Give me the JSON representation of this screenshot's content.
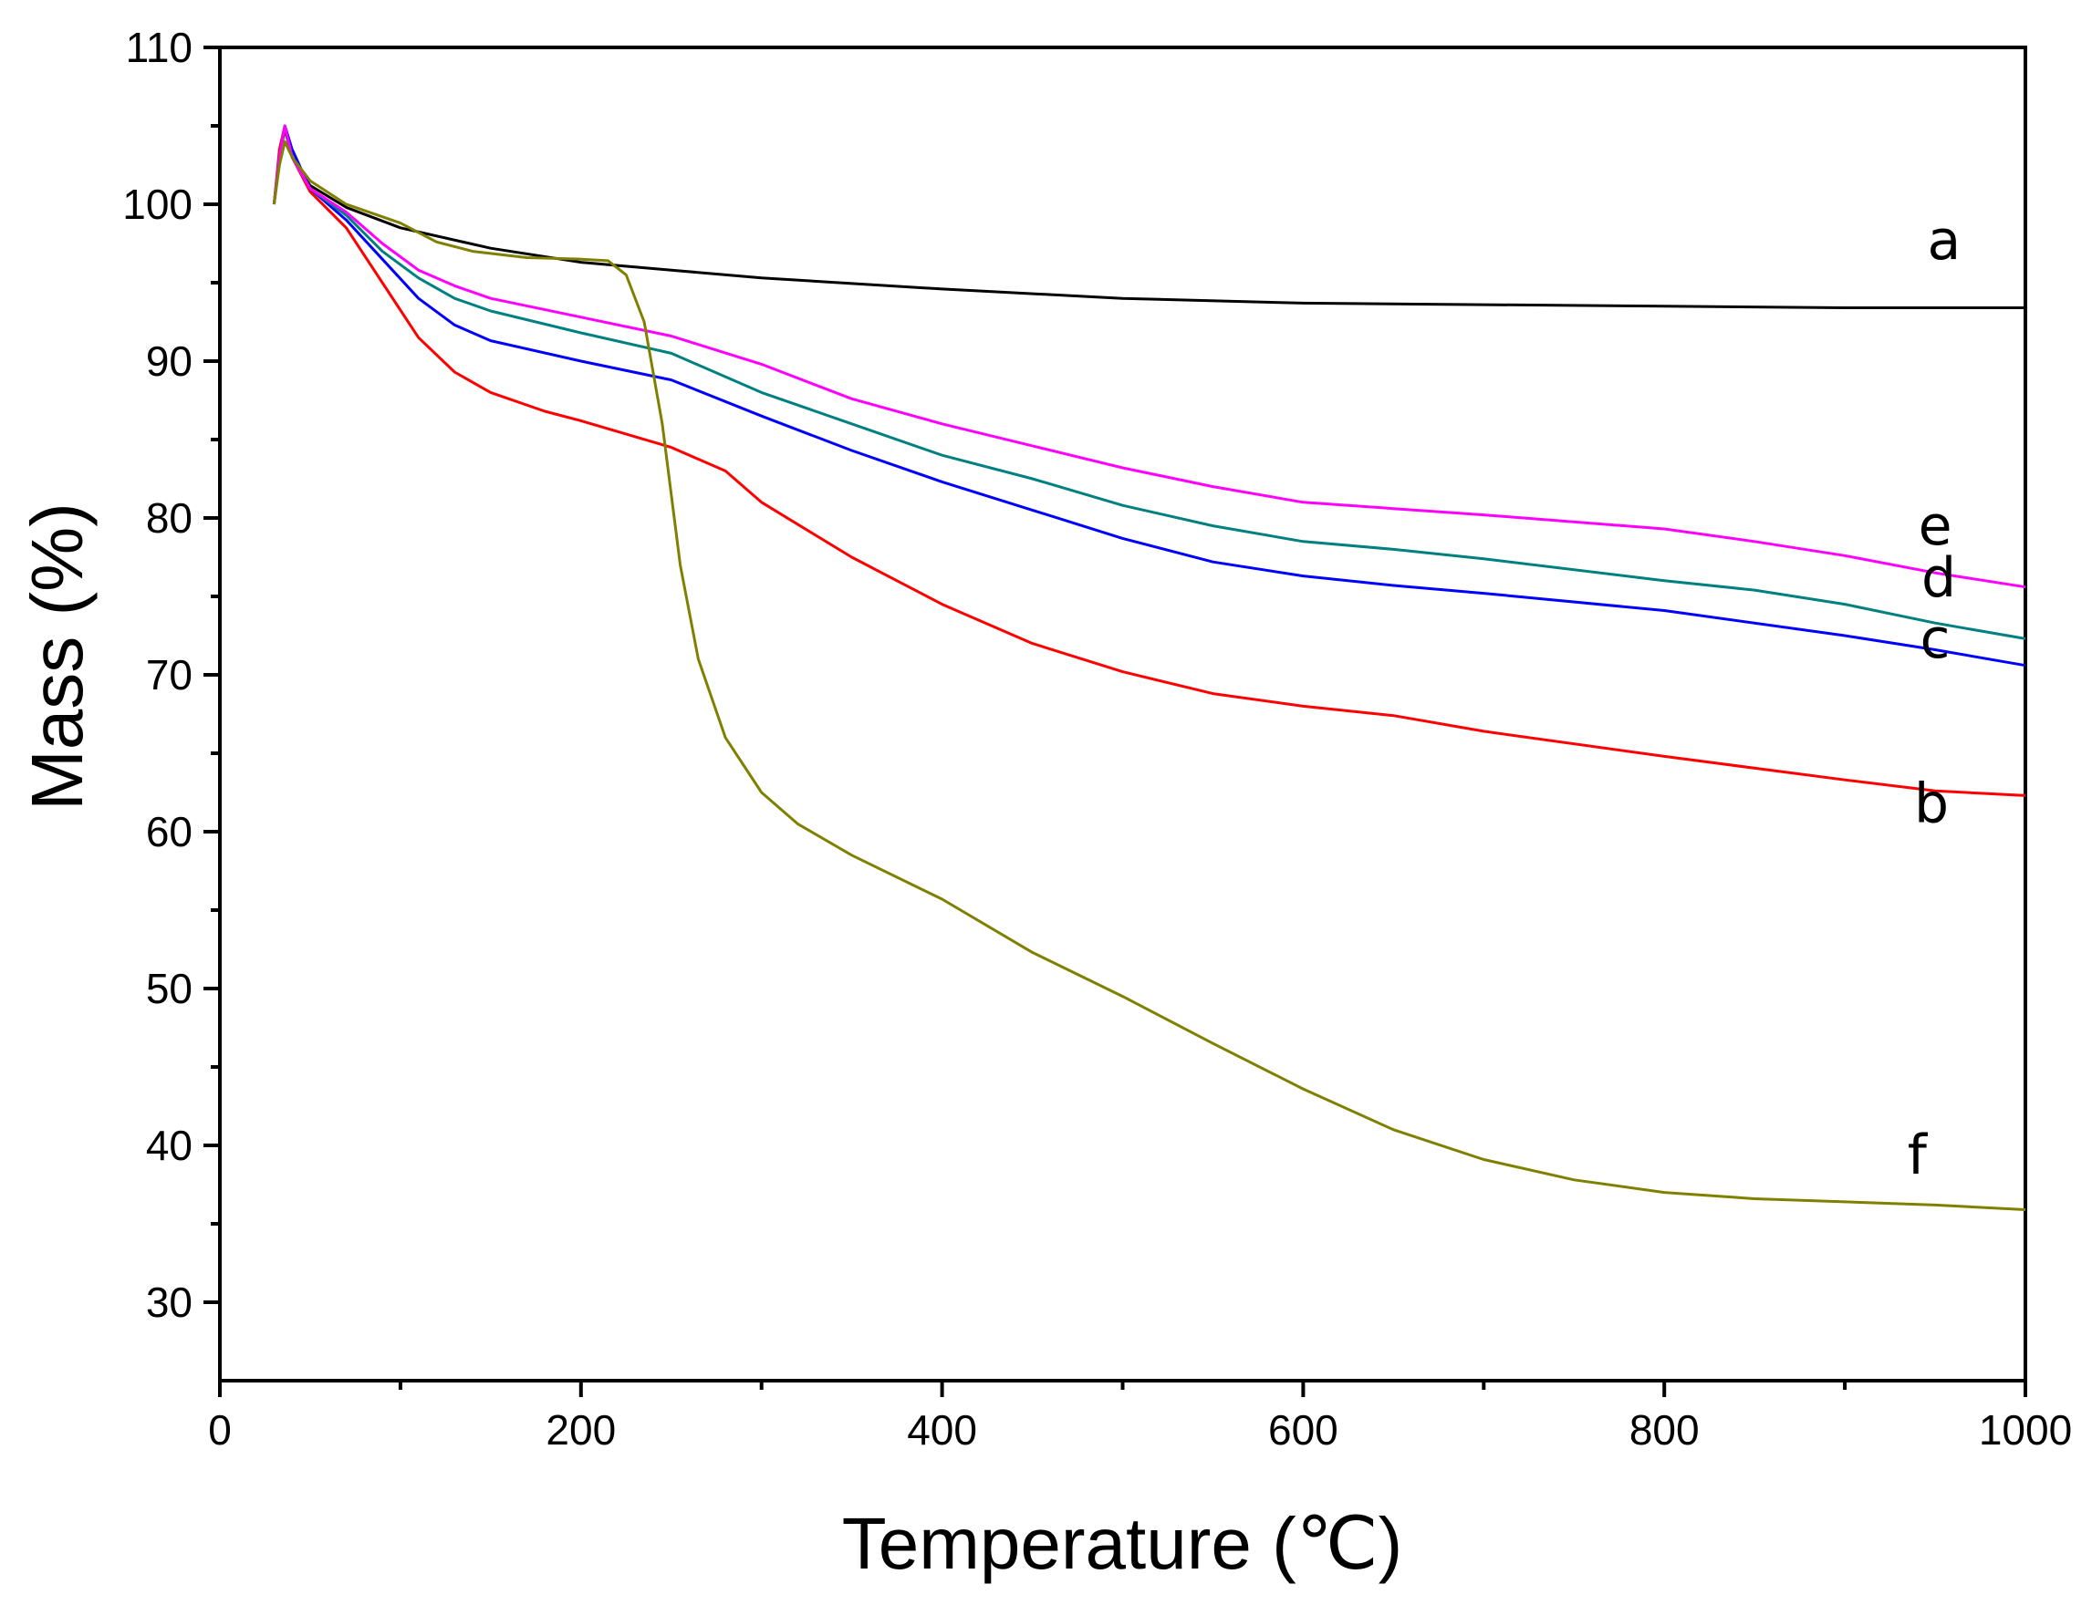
{
  "chart_data": {
    "type": "line",
    "title": "",
    "xlabel": "Temperature (℃)",
    "ylabel": "Mass (%)",
    "xlim": [
      0,
      1000
    ],
    "ylim": [
      25,
      110
    ],
    "xticks": [
      0,
      200,
      400,
      600,
      800,
      1000
    ],
    "yticks": [
      30,
      40,
      50,
      60,
      70,
      80,
      90,
      100,
      110
    ],
    "grid": false,
    "legend": "none; curves labeled inline at right end",
    "series": [
      {
        "name": "a",
        "color": "#000000",
        "points": [
          [
            30,
            100
          ],
          [
            33,
            103
          ],
          [
            36,
            104.8
          ],
          [
            40,
            103
          ],
          [
            50,
            101.2
          ],
          [
            70,
            99.8
          ],
          [
            100,
            98.5
          ],
          [
            150,
            97.2
          ],
          [
            200,
            96.3
          ],
          [
            250,
            95.8
          ],
          [
            300,
            95.3
          ],
          [
            400,
            94.6
          ],
          [
            500,
            94
          ],
          [
            600,
            93.7
          ],
          [
            700,
            93.6
          ],
          [
            800,
            93.5
          ],
          [
            900,
            93.4
          ],
          [
            1000,
            93.4
          ]
        ]
      },
      {
        "name": "b",
        "color": "#ff0000",
        "points": [
          [
            30,
            100
          ],
          [
            33,
            103.5
          ],
          [
            36,
            105
          ],
          [
            40,
            103
          ],
          [
            50,
            100.8
          ],
          [
            70,
            98.5
          ],
          [
            90,
            95
          ],
          [
            110,
            91.5
          ],
          [
            130,
            89.3
          ],
          [
            150,
            88
          ],
          [
            180,
            86.8
          ],
          [
            200,
            86.2
          ],
          [
            250,
            84.5
          ],
          [
            280,
            83
          ],
          [
            300,
            81
          ],
          [
            350,
            77.5
          ],
          [
            400,
            74.5
          ],
          [
            450,
            72
          ],
          [
            500,
            70.2
          ],
          [
            550,
            68.8
          ],
          [
            600,
            68
          ],
          [
            650,
            67.4
          ],
          [
            700,
            66.4
          ],
          [
            800,
            64.8
          ],
          [
            900,
            63.3
          ],
          [
            950,
            62.6
          ],
          [
            1000,
            62.3
          ]
        ]
      },
      {
        "name": "c",
        "color": "#0000ff",
        "points": [
          [
            30,
            100
          ],
          [
            33,
            103
          ],
          [
            36,
            105
          ],
          [
            40,
            103.5
          ],
          [
            50,
            101
          ],
          [
            70,
            99
          ],
          [
            90,
            96.5
          ],
          [
            110,
            94
          ],
          [
            130,
            92.3
          ],
          [
            150,
            91.3
          ],
          [
            200,
            90
          ],
          [
            250,
            88.8
          ],
          [
            300,
            86.5
          ],
          [
            350,
            84.3
          ],
          [
            400,
            82.3
          ],
          [
            450,
            80.5
          ],
          [
            500,
            78.7
          ],
          [
            550,
            77.2
          ],
          [
            600,
            76.3
          ],
          [
            650,
            75.7
          ],
          [
            700,
            75.2
          ],
          [
            800,
            74.1
          ],
          [
            900,
            72.5
          ],
          [
            950,
            71.6
          ],
          [
            1000,
            70.6
          ]
        ]
      },
      {
        "name": "d",
        "color": "#008080",
        "points": [
          [
            30,
            100
          ],
          [
            33,
            103
          ],
          [
            36,
            105
          ],
          [
            40,
            103
          ],
          [
            50,
            101
          ],
          [
            70,
            99.3
          ],
          [
            90,
            97
          ],
          [
            110,
            95.3
          ],
          [
            130,
            94
          ],
          [
            150,
            93.2
          ],
          [
            200,
            91.8
          ],
          [
            250,
            90.5
          ],
          [
            300,
            88
          ],
          [
            350,
            86
          ],
          [
            400,
            84
          ],
          [
            450,
            82.5
          ],
          [
            500,
            80.8
          ],
          [
            550,
            79.5
          ],
          [
            600,
            78.5
          ],
          [
            650,
            78
          ],
          [
            700,
            77.4
          ],
          [
            800,
            76
          ],
          [
            850,
            75.4
          ],
          [
            900,
            74.5
          ],
          [
            950,
            73.3
          ],
          [
            1000,
            72.3
          ]
        ]
      },
      {
        "name": "e",
        "color": "#ff00ff",
        "points": [
          [
            30,
            100
          ],
          [
            33,
            103
          ],
          [
            36,
            105
          ],
          [
            40,
            103
          ],
          [
            50,
            101
          ],
          [
            70,
            99.5
          ],
          [
            90,
            97.5
          ],
          [
            110,
            95.8
          ],
          [
            130,
            94.8
          ],
          [
            150,
            94
          ],
          [
            200,
            92.8
          ],
          [
            250,
            91.6
          ],
          [
            300,
            89.8
          ],
          [
            350,
            87.6
          ],
          [
            400,
            86
          ],
          [
            450,
            84.6
          ],
          [
            500,
            83.2
          ],
          [
            550,
            82
          ],
          [
            600,
            81
          ],
          [
            650,
            80.6
          ],
          [
            700,
            80.2
          ],
          [
            800,
            79.3
          ],
          [
            850,
            78.5
          ],
          [
            900,
            77.6
          ],
          [
            950,
            76.5
          ],
          [
            1000,
            75.6
          ]
        ]
      },
      {
        "name": "f",
        "color": "#808000",
        "points": [
          [
            30,
            100
          ],
          [
            33,
            102.5
          ],
          [
            36,
            104
          ],
          [
            40,
            103
          ],
          [
            50,
            101.5
          ],
          [
            70,
            100
          ],
          [
            100,
            98.8
          ],
          [
            120,
            97.6
          ],
          [
            140,
            97
          ],
          [
            170,
            96.6
          ],
          [
            200,
            96.5
          ],
          [
            215,
            96.4
          ],
          [
            225,
            95.5
          ],
          [
            235,
            92.5
          ],
          [
            245,
            86
          ],
          [
            255,
            77
          ],
          [
            265,
            71
          ],
          [
            280,
            66
          ],
          [
            300,
            62.5
          ],
          [
            320,
            60.5
          ],
          [
            350,
            58.5
          ],
          [
            400,
            55.7
          ],
          [
            450,
            52.3
          ],
          [
            500,
            49.5
          ],
          [
            550,
            46.5
          ],
          [
            600,
            43.6
          ],
          [
            650,
            41
          ],
          [
            700,
            39.1
          ],
          [
            750,
            37.8
          ],
          [
            800,
            37
          ],
          [
            850,
            36.6
          ],
          [
            900,
            36.4
          ],
          [
            950,
            36.2
          ],
          [
            1000,
            35.9
          ]
        ]
      }
    ],
    "annotations": [
      {
        "text": "a",
        "x": 955,
        "y": 96.5
      },
      {
        "text": "e",
        "x": 950,
        "y": 78.3
      },
      {
        "text": "d",
        "x": 952,
        "y": 75
      },
      {
        "text": "c",
        "x": 950,
        "y": 71.1
      },
      {
        "text": "b",
        "x": 948,
        "y": 60.6
      },
      {
        "text": "f",
        "x": 940,
        "y": 38.2
      }
    ]
  }
}
